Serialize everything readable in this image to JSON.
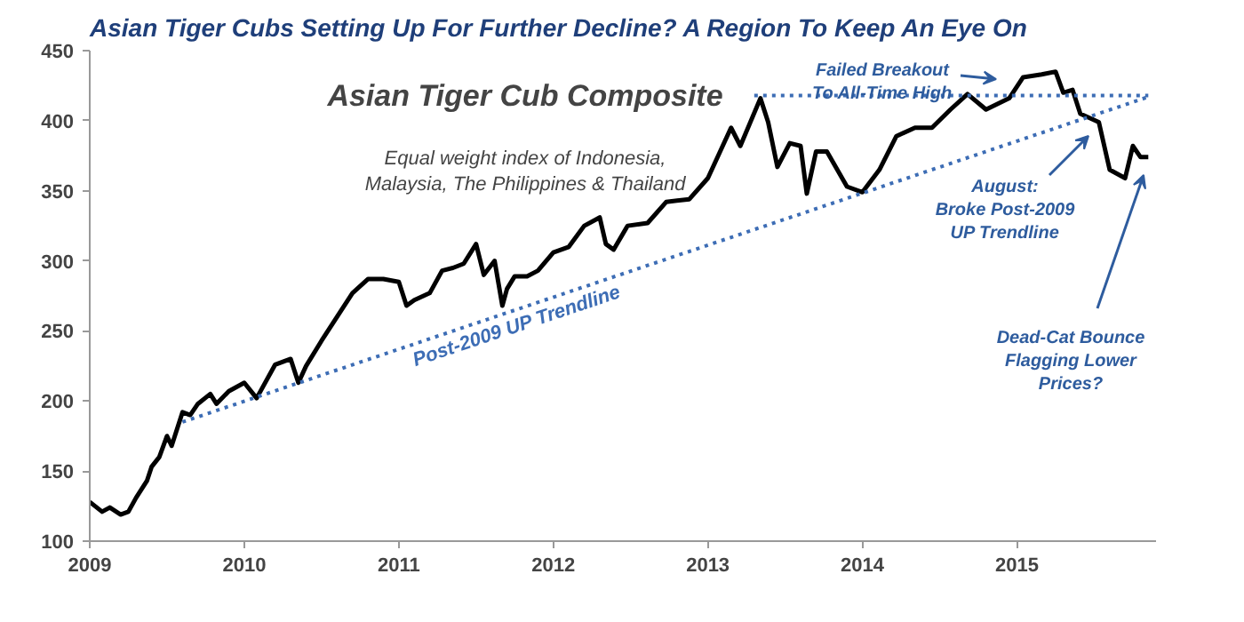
{
  "chart_data": {
    "type": "line",
    "title": "Asian Tiger Cubs Setting Up For Further Decline?  A Region To Keep An Eye On",
    "subtitle": "Asian Tiger Cub Composite",
    "xlim": [
      2009,
      2015.9
    ],
    "xticks": [
      2009,
      2010,
      2011,
      2012,
      2013,
      2014,
      2015
    ],
    "ylim": [
      100,
      450
    ],
    "yticks": [
      100,
      150,
      200,
      250,
      300,
      350,
      400,
      450
    ],
    "grid": false,
    "series": [
      {
        "color": "#000000",
        "line_style": "solid",
        "x": [
          2009.0,
          2009.08,
          2009.13,
          2009.2,
          2009.25,
          2009.3,
          2009.37,
          2009.4,
          2009.45,
          2009.5,
          2009.53,
          2009.6,
          2009.65,
          2009.7,
          2009.78,
          2009.82,
          2009.9,
          2010.0,
          2010.08,
          2010.2,
          2010.3,
          2010.35,
          2010.4,
          2010.5,
          2010.6,
          2010.7,
          2010.8,
          2010.9,
          2011.0,
          2011.05,
          2011.1,
          2011.2,
          2011.28,
          2011.35,
          2011.42,
          2011.5,
          2011.55,
          2011.62,
          2011.67,
          2011.7,
          2011.75,
          2011.83,
          2011.9,
          2012.0,
          2012.1,
          2012.2,
          2012.3,
          2012.34,
          2012.39,
          2012.48,
          2012.61,
          2012.73,
          2012.88,
          2013.0,
          2013.15,
          2013.21,
          2013.34,
          2013.39,
          2013.45,
          2013.53,
          2013.6,
          2013.64,
          2013.7,
          2013.77,
          2013.9,
          2014.0,
          2014.11,
          2014.22,
          2014.34,
          2014.45,
          2014.57,
          2014.68,
          2014.8,
          2014.95,
          2015.04,
          2015.16,
          2015.25,
          2015.3,
          2015.36,
          2015.41,
          2015.53,
          2015.6,
          2015.7,
          2015.75,
          2015.8,
          2015.85
        ],
        "values": [
          128,
          121,
          124,
          119,
          121,
          131,
          143,
          153,
          160,
          175,
          168,
          192,
          190,
          198,
          205,
          198,
          207,
          213,
          202,
          226,
          230,
          213,
          225,
          243,
          260,
          277,
          287,
          287,
          285,
          268,
          272,
          277,
          293,
          295,
          298,
          312,
          290,
          300,
          268,
          280,
          289,
          289,
          293,
          306,
          310,
          325,
          331,
          312,
          308,
          325,
          327,
          342,
          344,
          359,
          395,
          382,
          416,
          399,
          367,
          384,
          382,
          348,
          378,
          378,
          353,
          349,
          365,
          389,
          395,
          395,
          408,
          419,
          408,
          416,
          431,
          433,
          435,
          420,
          422,
          405,
          399,
          365,
          359,
          382,
          374,
          374
        ]
      },
      {
        "name": "Post-2009 UP Trendline",
        "color": "#3d6db5",
        "line_style": "dotted",
        "x": [
          2009.6,
          2015.85
        ],
        "values": [
          185,
          417
        ]
      },
      {
        "color": "#3d6db5",
        "line_style": "dotted",
        "x": [
          2013.3,
          2015.85
        ],
        "values": [
          418,
          418
        ]
      }
    ],
    "annotations": [
      "Equal weight index of Indonesia,\nMalaysia, The Philippines & Thailand",
      "Failed Breakout\nTo All-Time High",
      "August:\nBroke Post-2009\nUP Trendline",
      "Dead-Cat Bounce\nFlagging Lower\nPrices?"
    ]
  }
}
